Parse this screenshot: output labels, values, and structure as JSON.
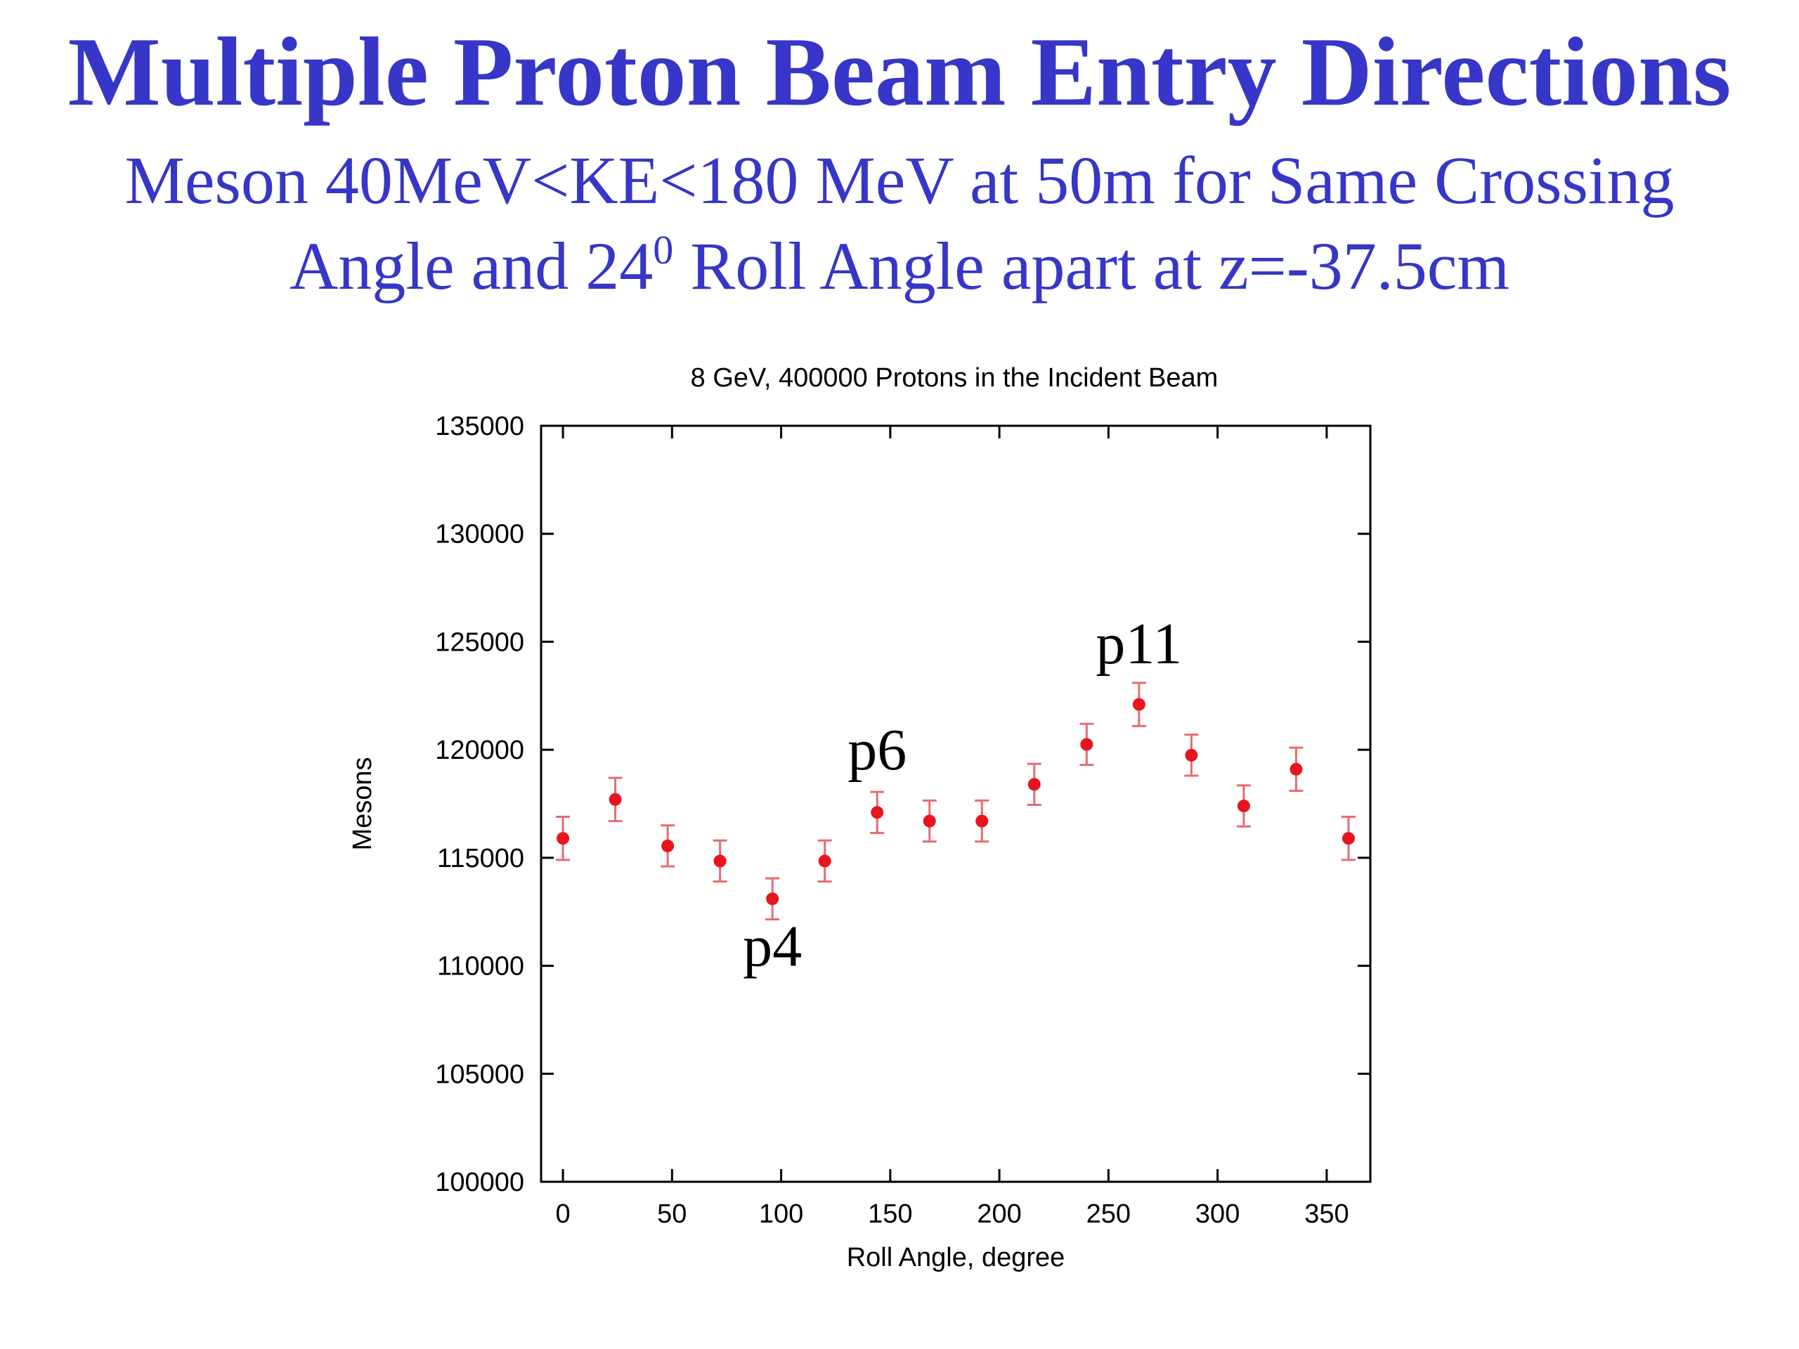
{
  "slide": {
    "title": "Multiple Proton Beam Entry Directions",
    "subtitle_line1": "Meson 40MeV<KE<180 MeV at 50m for Same Crossing",
    "subtitle_line2_pre": "Angle and 24",
    "subtitle_line2_sup": "0",
    "subtitle_line2_post": " Roll Angle apart at z=-37.5cm",
    "title_color": "#3636c8"
  },
  "chart_data": {
    "type": "scatter",
    "title": "8 GeV, 400000 Protons in the Incident Beam",
    "xlabel": "Roll Angle, degree",
    "ylabel": "Mesons",
    "xlim": [
      -10,
      370
    ],
    "ylim": [
      100000,
      135000
    ],
    "xticks": [
      0,
      50,
      100,
      150,
      200,
      250,
      300,
      350
    ],
    "yticks": [
      100000,
      105000,
      110000,
      115000,
      120000,
      125000,
      130000,
      135000
    ],
    "grid": false,
    "marker_color": "#e8141e",
    "errorbar_color": "#e86b70",
    "series": [
      {
        "x": [
          0,
          24,
          48,
          72,
          96,
          120,
          144,
          168,
          192,
          216,
          240,
          264,
          288,
          312,
          336,
          360
        ],
        "y": [
          115900,
          117700,
          115550,
          114850,
          113100,
          114850,
          117100,
          116700,
          116700,
          118400,
          120250,
          122100,
          119750,
          117400,
          119100,
          115900
        ],
        "err": [
          1000,
          1000,
          950,
          950,
          950,
          950,
          950,
          950,
          950,
          950,
          950,
          1000,
          950,
          950,
          1000,
          1000
        ]
      }
    ],
    "annotations": [
      {
        "text": "p4",
        "x": 96,
        "y": 110000
      },
      {
        "text": "p6",
        "x": 144,
        "y": 119100
      },
      {
        "text": "p11",
        "x": 264,
        "y": 124000
      }
    ]
  }
}
